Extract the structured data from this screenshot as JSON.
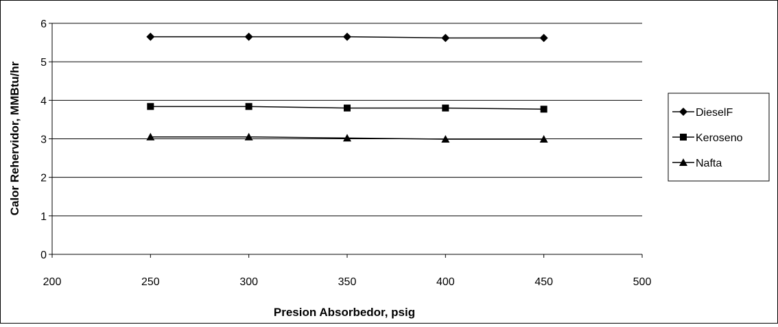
{
  "chart_data": {
    "type": "line",
    "title": "",
    "xlabel": "Presion Absorbedor, psig",
    "ylabel": "Calor Rehervidor, MMBtu/hr",
    "xlim": [
      200,
      500
    ],
    "ylim": [
      0,
      6
    ],
    "x_ticks": [
      200,
      250,
      300,
      350,
      400,
      450,
      500
    ],
    "y_ticks": [
      0,
      1,
      2,
      3,
      4,
      5,
      6
    ],
    "grid": "horizontal",
    "legend_position": "right",
    "x": [
      250,
      300,
      350,
      400,
      450
    ],
    "series": [
      {
        "name": "DieselF",
        "marker": "diamond",
        "values": [
          5.65,
          5.65,
          5.65,
          5.62,
          5.62
        ]
      },
      {
        "name": "Keroseno",
        "marker": "square",
        "values": [
          3.84,
          3.84,
          3.8,
          3.8,
          3.77
        ]
      },
      {
        "name": "Nafta",
        "marker": "triangle",
        "values": [
          3.05,
          3.05,
          3.02,
          2.99,
          2.99
        ]
      }
    ]
  }
}
